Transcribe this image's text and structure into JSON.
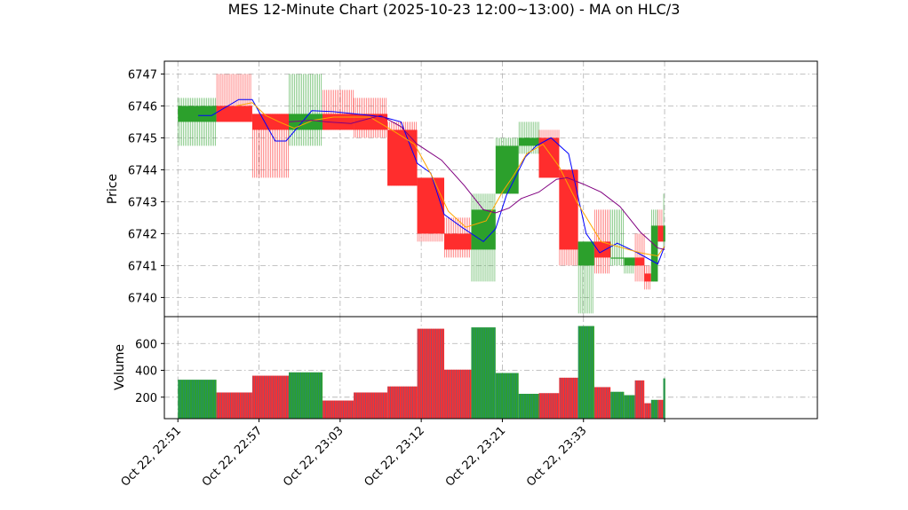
{
  "chart_data": {
    "type": "candlestick",
    "title": "MES 12-Minute Chart (2025-10-23 12:00~13:00) - MA on HLC/3",
    "price_panel": {
      "ylabel": "Price",
      "ylim": [
        6739.4,
        6747.4
      ],
      "yticks": [
        6740,
        6741,
        6742,
        6743,
        6744,
        6745,
        6746,
        6747
      ],
      "up_color": "#2ca02c",
      "down_color": "#ff2d2d"
    },
    "volume_panel": {
      "ylabel": "Volume",
      "ylim": [
        40,
        800
      ],
      "yticks": [
        200,
        400,
        600
      ]
    },
    "x_domain": [
      -1.0,
      47.3
    ],
    "x_ticks": [
      {
        "x": 0,
        "label": "Oct 22, 22:51"
      },
      {
        "x": 6,
        "label": "Oct 22, 22:57"
      },
      {
        "x": 12,
        "label": "Oct 22, 23:03"
      },
      {
        "x": 18,
        "label": "Oct 22, 23:12"
      },
      {
        "x": 24,
        "label": "Oct 22, 23:21"
      },
      {
        "x": 30,
        "label": "Oct 22, 23:33"
      },
      {
        "x": 36,
        "label": ""
      }
    ],
    "candles": [
      {
        "x0": 0.0,
        "x1": 2.85,
        "open": 6745.5,
        "high": 6746.25,
        "low": 6744.75,
        "close": 6746.0,
        "volume": 330
      },
      {
        "x0": 2.85,
        "x1": 5.5,
        "open": 6746.0,
        "high": 6747.0,
        "low": 6745.5,
        "close": 6745.5,
        "volume": 235
      },
      {
        "x0": 5.5,
        "x1": 8.2,
        "open": 6745.75,
        "high": 6745.75,
        "low": 6743.75,
        "close": 6745.25,
        "volume": 360
      },
      {
        "x0": 8.2,
        "x1": 10.7,
        "open": 6745.25,
        "high": 6747.0,
        "low": 6744.75,
        "close": 6745.75,
        "volume": 385
      },
      {
        "x0": 10.7,
        "x1": 13.0,
        "open": 6745.75,
        "high": 6746.5,
        "low": 6745.25,
        "close": 6745.25,
        "volume": 175
      },
      {
        "x0": 13.0,
        "x1": 15.5,
        "open": 6745.75,
        "high": 6746.25,
        "low": 6745.0,
        "close": 6745.25,
        "volume": 235
      },
      {
        "x0": 15.5,
        "x1": 17.7,
        "open": 6745.25,
        "high": 6745.5,
        "low": 6743.5,
        "close": 6743.5,
        "volume": 280
      },
      {
        "x0": 17.7,
        "x1": 19.7,
        "open": 6743.75,
        "high": 6743.75,
        "low": 6741.75,
        "close": 6742.0,
        "volume": 710
      },
      {
        "x0": 19.7,
        "x1": 21.7,
        "open": 6742.0,
        "high": 6742.5,
        "low": 6741.25,
        "close": 6741.5,
        "volume": 405
      },
      {
        "x0": 21.7,
        "x1": 23.5,
        "open": 6741.5,
        "high": 6743.25,
        "low": 6740.5,
        "close": 6742.75,
        "volume": 720
      },
      {
        "x0": 23.5,
        "x1": 25.2,
        "open": 6743.25,
        "high": 6745.0,
        "low": 6743.25,
        "close": 6744.75,
        "volume": 380
      },
      {
        "x0": 25.2,
        "x1": 26.7,
        "open": 6744.75,
        "high": 6745.5,
        "low": 6744.5,
        "close": 6745.0,
        "volume": 225
      },
      {
        "x0": 26.7,
        "x1": 28.2,
        "open": 6745.0,
        "high": 6745.25,
        "low": 6743.75,
        "close": 6743.75,
        "volume": 230
      },
      {
        "x0": 28.2,
        "x1": 29.6,
        "open": 6744.0,
        "high": 6744.0,
        "low": 6741.0,
        "close": 6741.5,
        "volume": 345
      },
      {
        "x0": 29.6,
        "x1": 30.8,
        "open": 6741.0,
        "high": 6741.75,
        "low": 6739.5,
        "close": 6741.75,
        "volume": 730
      },
      {
        "x0": 30.8,
        "x1": 32.0,
        "open": 6741.75,
        "high": 6742.75,
        "low": 6740.75,
        "close": 6741.25,
        "volume": 275
      },
      {
        "x0": 32.0,
        "x1": 33.0,
        "open": 6741.25,
        "high": 6742.75,
        "low": 6741.0,
        "close": 6741.25,
        "volume": 240
      },
      {
        "x0": 33.0,
        "x1": 33.8,
        "open": 6741.0,
        "high": 6741.25,
        "low": 6740.75,
        "close": 6741.25,
        "volume": 215
      },
      {
        "x0": 33.8,
        "x1": 34.5,
        "open": 6741.25,
        "high": 6742.0,
        "low": 6740.5,
        "close": 6741.0,
        "volume": 325
      },
      {
        "x0": 34.5,
        "x1": 35.0,
        "open": 6740.75,
        "high": 6741.0,
        "low": 6740.25,
        "close": 6740.5,
        "volume": 155
      },
      {
        "x0": 35.0,
        "x1": 35.5,
        "open": 6740.5,
        "high": 6742.75,
        "low": 6740.5,
        "close": 6742.25,
        "volume": 180
      },
      {
        "x0": 35.5,
        "x1": 35.9,
        "open": 6742.25,
        "high": 6742.75,
        "low": 6741.75,
        "close": 6741.75,
        "volume": 180
      },
      {
        "x0": 35.9,
        "x1": 36.05,
        "open": 6741.75,
        "high": 6743.25,
        "low": 6741.5,
        "close": 6742.25,
        "volume": 340
      }
    ],
    "series": [
      {
        "color": "#0000ff",
        "x": [
          1.5,
          2.5,
          4.5,
          5.5,
          7.2,
          8.0,
          9.9,
          11.5,
          14.3,
          15.2,
          16.5,
          17.7,
          18.7,
          19.7,
          21.0,
          22.6,
          23.5,
          24.3,
          25.7,
          26.5,
          27.6,
          28.9,
          30.2,
          31.2,
          32.5,
          34.0,
          35.5,
          36.0
        ],
        "values": [
          6745.7,
          6745.7,
          6746.2,
          6746.2,
          6744.9,
          6744.9,
          6745.85,
          6745.82,
          6745.7,
          6745.65,
          6745.5,
          6744.2,
          6743.9,
          6742.6,
          6742.2,
          6741.75,
          6742.15,
          6743.2,
          6744.4,
          6744.75,
          6745.0,
          6744.5,
          6742.0,
          6741.4,
          6741.7,
          6741.4,
          6741.05,
          6741.6
        ]
      },
      {
        "color": "#ffa500",
        "x": [
          4.3,
          5.5,
          6.5,
          7.5,
          8.6,
          10.0,
          11.5,
          14.2,
          16.0,
          17.5,
          18.8,
          20.0,
          21.3,
          22.8,
          24.0,
          24.8,
          25.8,
          27.0,
          28.2,
          29.5,
          31.3,
          32.5,
          34.2,
          35.5,
          36.0
        ],
        "values": [
          6746.0,
          6746.1,
          6745.7,
          6745.5,
          6745.3,
          6745.55,
          6745.65,
          6745.65,
          6745.2,
          6744.8,
          6743.8,
          6742.7,
          6742.2,
          6742.4,
          6743.3,
          6743.8,
          6744.5,
          6744.8,
          6744.1,
          6743.0,
          6741.75,
          6741.6,
          6741.4,
          6741.3,
          6741.6
        ]
      },
      {
        "color": "#800080",
        "x": [
          8.2,
          9.9,
          11.0,
          12.8,
          15.0,
          16.5,
          17.7,
          19.5,
          21.2,
          22.6,
          23.5,
          24.5,
          25.4,
          26.7,
          28.0,
          28.8,
          30.0,
          31.3,
          32.7,
          34.2,
          35.5,
          36.0
        ],
        "values": [
          6745.5,
          6745.55,
          6745.5,
          6745.45,
          6745.7,
          6745.35,
          6744.8,
          6744.3,
          6743.5,
          6742.75,
          6742.65,
          6742.8,
          6743.1,
          6743.3,
          6743.7,
          6743.75,
          6743.55,
          6743.3,
          6742.85,
          6742.05,
          6741.55,
          6741.5
        ]
      }
    ]
  }
}
